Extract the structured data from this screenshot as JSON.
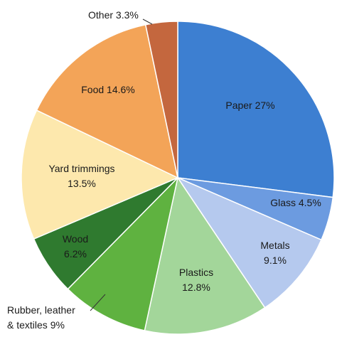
{
  "chart_data": {
    "type": "pie",
    "slices": [
      {
        "label": "Paper 27%",
        "lines": [
          "Paper 27%"
        ],
        "value": 27,
        "color": "#3d7fd1"
      },
      {
        "label": "Glass 4.5%",
        "lines": [
          "Glass 4.5%"
        ],
        "value": 4.5,
        "color": "#6c9be0"
      },
      {
        "label": "Metals 9.1%",
        "lines": [
          "Metals",
          "9.1%"
        ],
        "value": 9.1,
        "color": "#b5c9ee"
      },
      {
        "label": "Plastics 12.8%",
        "lines": [
          "Plastics",
          "12.8%"
        ],
        "value": 12.8,
        "color": "#a3d69a"
      },
      {
        "label": "Rubber, leather & textiles 9%",
        "lines": [
          "Rubber, leather",
          "& textiles 9%"
        ],
        "value": 9,
        "color": "#5fb240"
      },
      {
        "label": "Wood 6.2%",
        "lines": [
          "Wood",
          "6.2%"
        ],
        "value": 6.2,
        "color": "#2f7a2f"
      },
      {
        "label": "Yard trimmings 13.5%",
        "lines": [
          "Yard trimmings",
          "13.5%"
        ],
        "value": 13.5,
        "color": "#fde8ad"
      },
      {
        "label": "Food 14.6%",
        "lines": [
          "Food 14.6%"
        ],
        "value": 14.6,
        "color": "#f3a458"
      },
      {
        "label": "Other 3.3%",
        "lines": [
          "Other 3.3%"
        ],
        "value": 3.3,
        "color": "#c4673e"
      }
    ],
    "start_angle": "12 o'clock",
    "direction": "clockwise",
    "legend": "none"
  }
}
